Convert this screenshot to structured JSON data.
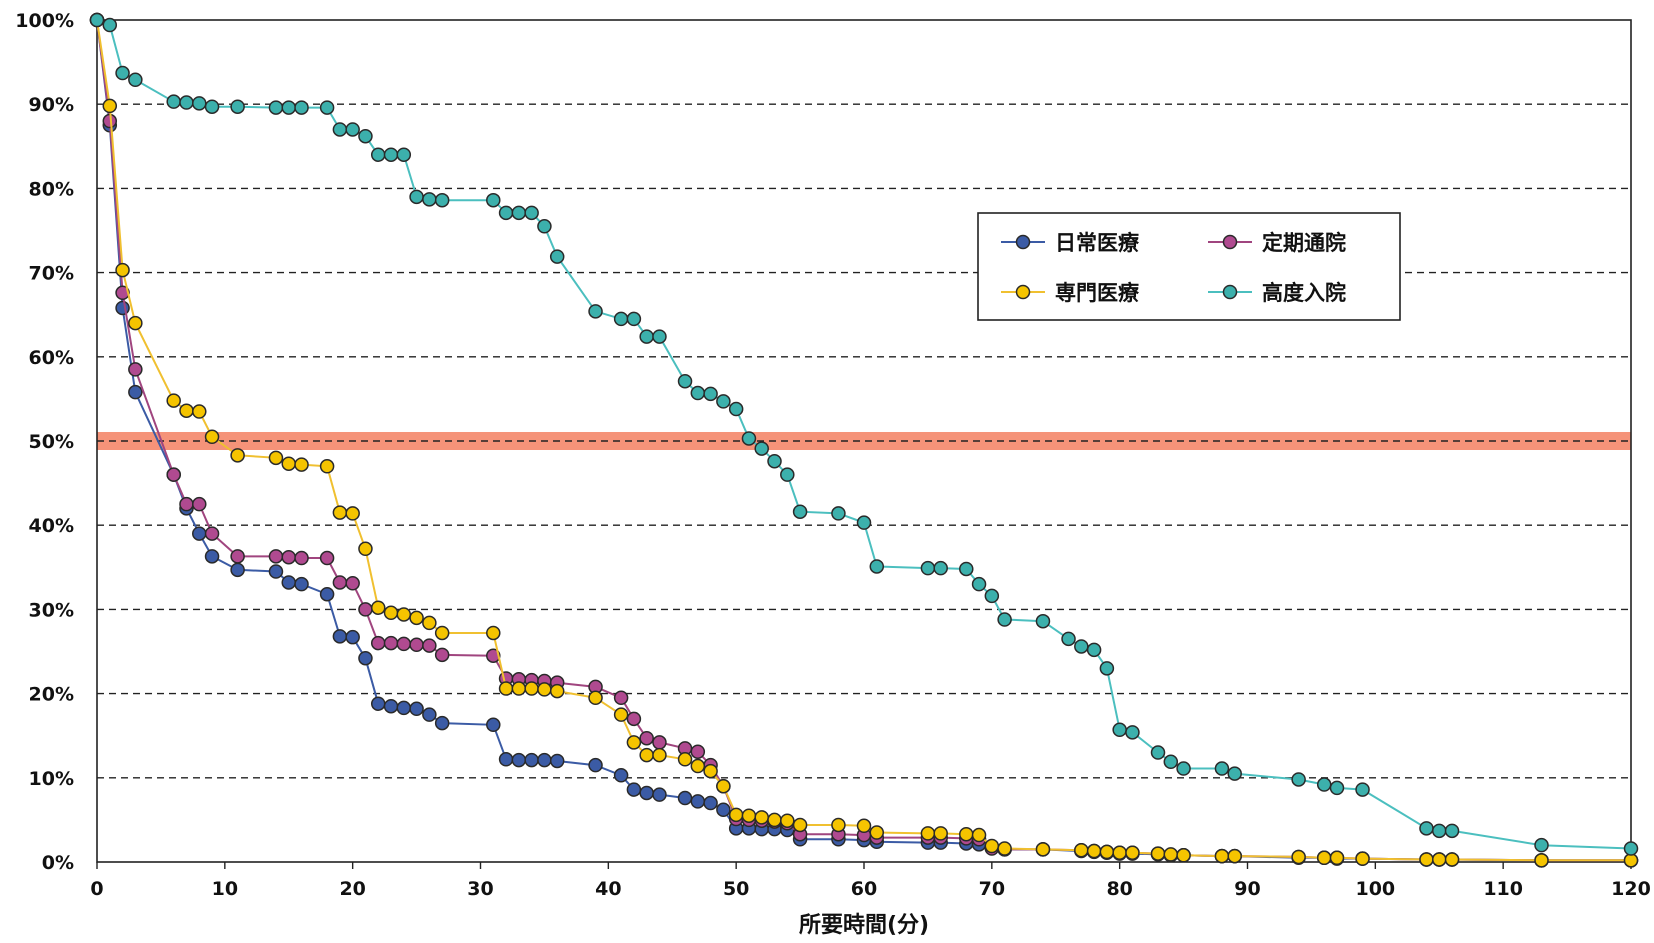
{
  "chart_data": {
    "type": "line",
    "title": "",
    "xlabel": "所要時間(分)",
    "ylabel": "",
    "xlim": [
      0,
      120
    ],
    "ylim": [
      0,
      100
    ],
    "x_ticks": [
      0,
      10,
      20,
      30,
      40,
      50,
      60,
      70,
      80,
      90,
      100,
      110,
      120
    ],
    "y_ticks": [
      0,
      10,
      20,
      30,
      40,
      50,
      60,
      70,
      80,
      90,
      100
    ],
    "y_tick_labels": [
      "0%",
      "10%",
      "20%",
      "30%",
      "40%",
      "50%",
      "60%",
      "70%",
      "80%",
      "90%",
      "100%"
    ],
    "grid": "horizontal dashed",
    "legend_position": "upper-right",
    "highlight_band": {
      "y": 50,
      "color": "#f4876a"
    },
    "series": [
      {
        "name": "日常医療",
        "color": "#3b5ba5",
        "marker_fill": "#3b5ba5",
        "points": [
          [
            0,
            100
          ],
          [
            1,
            87.5
          ],
          [
            2,
            65.8
          ],
          [
            3,
            55.8
          ],
          [
            6,
            46
          ],
          [
            7,
            42
          ],
          [
            8,
            39
          ],
          [
            9,
            36.3
          ],
          [
            11,
            34.7
          ],
          [
            14,
            34.5
          ],
          [
            15,
            33.2
          ],
          [
            16,
            33
          ],
          [
            18,
            31.8
          ],
          [
            19,
            26.8
          ],
          [
            20,
            26.7
          ],
          [
            21,
            24.2
          ],
          [
            22,
            18.8
          ],
          [
            23,
            18.5
          ],
          [
            24,
            18.3
          ],
          [
            25,
            18.2
          ],
          [
            26,
            17.5
          ],
          [
            27,
            16.5
          ],
          [
            31,
            16.3
          ],
          [
            32,
            12.2
          ],
          [
            33,
            12.1
          ],
          [
            34,
            12.1
          ],
          [
            35,
            12.1
          ],
          [
            36,
            12
          ],
          [
            39,
            11.5
          ],
          [
            41,
            10.3
          ],
          [
            42,
            8.6
          ],
          [
            43,
            8.2
          ],
          [
            44,
            8
          ],
          [
            46,
            7.6
          ],
          [
            47,
            7.2
          ],
          [
            48,
            7
          ],
          [
            49,
            6.2
          ],
          [
            50,
            4
          ],
          [
            51,
            4
          ],
          [
            52,
            3.9
          ],
          [
            53,
            3.9
          ],
          [
            54,
            3.8
          ],
          [
            55,
            2.7
          ],
          [
            58,
            2.7
          ],
          [
            60,
            2.6
          ],
          [
            61,
            2.4
          ],
          [
            65,
            2.3
          ],
          [
            66,
            2.3
          ],
          [
            68,
            2.2
          ],
          [
            69,
            2.1
          ],
          [
            70,
            1.8
          ],
          [
            71,
            1.5
          ],
          [
            74,
            1.5
          ],
          [
            77,
            1.3
          ],
          [
            78,
            1.2
          ],
          [
            79,
            1.1
          ],
          [
            80,
            1
          ],
          [
            81,
            1
          ],
          [
            83,
            0.9
          ],
          [
            84,
            0.8
          ],
          [
            85,
            0.8
          ],
          [
            88,
            0.7
          ],
          [
            89,
            0.7
          ],
          [
            94,
            0.5
          ],
          [
            96,
            0.5
          ],
          [
            97,
            0.4
          ],
          [
            99,
            0.4
          ],
          [
            104,
            0.3
          ],
          [
            105,
            0.3
          ],
          [
            106,
            0.3
          ],
          [
            113,
            0.2
          ],
          [
            120,
            0.2
          ]
        ]
      },
      {
        "name": "定期通院",
        "color": "#a0457f",
        "marker_fill": "#b04a90",
        "points": [
          [
            0,
            100
          ],
          [
            1,
            88
          ],
          [
            2,
            67.6
          ],
          [
            3,
            58.5
          ],
          [
            6,
            46
          ],
          [
            7,
            42.5
          ],
          [
            8,
            42.5
          ],
          [
            9,
            39
          ],
          [
            11,
            36.3
          ],
          [
            14,
            36.3
          ],
          [
            15,
            36.2
          ],
          [
            16,
            36.1
          ],
          [
            18,
            36.1
          ],
          [
            19,
            33.2
          ],
          [
            20,
            33.1
          ],
          [
            21,
            30
          ],
          [
            22,
            26
          ],
          [
            23,
            26
          ],
          [
            24,
            25.9
          ],
          [
            25,
            25.8
          ],
          [
            26,
            25.7
          ],
          [
            27,
            24.6
          ],
          [
            31,
            24.5
          ],
          [
            32,
            21.8
          ],
          [
            33,
            21.7
          ],
          [
            34,
            21.6
          ],
          [
            35,
            21.5
          ],
          [
            36,
            21.3
          ],
          [
            39,
            20.8
          ],
          [
            41,
            19.5
          ],
          [
            42,
            17
          ],
          [
            43,
            14.7
          ],
          [
            44,
            14.2
          ],
          [
            46,
            13.5
          ],
          [
            47,
            13.1
          ],
          [
            48,
            11.5
          ],
          [
            49,
            9
          ],
          [
            50,
            5.1
          ],
          [
            51,
            5
          ],
          [
            52,
            4.9
          ],
          [
            53,
            4.8
          ],
          [
            54,
            4.6
          ],
          [
            55,
            3.3
          ],
          [
            58,
            3.3
          ],
          [
            60,
            3.2
          ],
          [
            61,
            2.9
          ],
          [
            65,
            2.9
          ],
          [
            66,
            2.9
          ],
          [
            68,
            2.8
          ],
          [
            69,
            2.7
          ],
          [
            70,
            1.6
          ],
          [
            71,
            1.5
          ],
          [
            74,
            1.5
          ],
          [
            77,
            1.4
          ],
          [
            78,
            1.3
          ],
          [
            79,
            1.2
          ],
          [
            80,
            1.1
          ],
          [
            81,
            1.1
          ],
          [
            83,
            1
          ],
          [
            84,
            0.8
          ],
          [
            85,
            0.8
          ],
          [
            88,
            0.7
          ],
          [
            89,
            0.7
          ],
          [
            94,
            0.6
          ],
          [
            96,
            0.5
          ],
          [
            97,
            0.5
          ],
          [
            99,
            0.4
          ],
          [
            104,
            0.3
          ],
          [
            105,
            0.3
          ],
          [
            106,
            0.3
          ],
          [
            113,
            0.2
          ],
          [
            120,
            0.2
          ]
        ]
      },
      {
        "name": "専門医療",
        "color": "#f0c030",
        "marker_fill": "#f5c400",
        "points": [
          [
            0,
            100
          ],
          [
            1,
            89.8
          ],
          [
            2,
            70.3
          ],
          [
            3,
            64
          ],
          [
            6,
            54.8
          ],
          [
            7,
            53.6
          ],
          [
            8,
            53.5
          ],
          [
            9,
            50.5
          ],
          [
            11,
            48.3
          ],
          [
            14,
            48
          ],
          [
            15,
            47.3
          ],
          [
            16,
            47.2
          ],
          [
            18,
            47
          ],
          [
            19,
            41.5
          ],
          [
            20,
            41.4
          ],
          [
            21,
            37.2
          ],
          [
            22,
            30.2
          ],
          [
            23,
            29.6
          ],
          [
            24,
            29.4
          ],
          [
            25,
            29
          ],
          [
            26,
            28.4
          ],
          [
            27,
            27.2
          ],
          [
            31,
            27.2
          ],
          [
            32,
            20.6
          ],
          [
            33,
            20.6
          ],
          [
            34,
            20.6
          ],
          [
            35,
            20.5
          ],
          [
            36,
            20.3
          ],
          [
            39,
            19.5
          ],
          [
            41,
            17.5
          ],
          [
            42,
            14.2
          ],
          [
            43,
            12.7
          ],
          [
            44,
            12.7
          ],
          [
            46,
            12.2
          ],
          [
            47,
            11.4
          ],
          [
            48,
            10.8
          ],
          [
            49,
            9
          ],
          [
            50,
            5.6
          ],
          [
            51,
            5.5
          ],
          [
            52,
            5.3
          ],
          [
            53,
            5
          ],
          [
            54,
            4.9
          ],
          [
            55,
            4.4
          ],
          [
            58,
            4.4
          ],
          [
            60,
            4.3
          ],
          [
            61,
            3.5
          ],
          [
            65,
            3.4
          ],
          [
            66,
            3.4
          ],
          [
            68,
            3.3
          ],
          [
            69,
            3.2
          ],
          [
            70,
            1.9
          ],
          [
            71,
            1.6
          ],
          [
            74,
            1.5
          ],
          [
            77,
            1.4
          ],
          [
            78,
            1.3
          ],
          [
            79,
            1.2
          ],
          [
            80,
            1.1
          ],
          [
            81,
            1.1
          ],
          [
            83,
            1
          ],
          [
            84,
            0.9
          ],
          [
            85,
            0.8
          ],
          [
            88,
            0.7
          ],
          [
            89,
            0.7
          ],
          [
            94,
            0.6
          ],
          [
            96,
            0.5
          ],
          [
            97,
            0.5
          ],
          [
            99,
            0.4
          ],
          [
            104,
            0.3
          ],
          [
            105,
            0.3
          ],
          [
            106,
            0.3
          ],
          [
            113,
            0.2
          ],
          [
            120,
            0.2
          ]
        ]
      },
      {
        "name": "高度入院",
        "color": "#4bbfbf",
        "marker_fill": "#3cb0ac",
        "points": [
          [
            0,
            100
          ],
          [
            1,
            99.4
          ],
          [
            2,
            93.7
          ],
          [
            3,
            92.9
          ],
          [
            6,
            90.3
          ],
          [
            7,
            90.2
          ],
          [
            8,
            90.1
          ],
          [
            9,
            89.7
          ],
          [
            11,
            89.7
          ],
          [
            14,
            89.6
          ],
          [
            15,
            89.6
          ],
          [
            16,
            89.6
          ],
          [
            18,
            89.6
          ],
          [
            19,
            87
          ],
          [
            20,
            87
          ],
          [
            21,
            86.2
          ],
          [
            22,
            84
          ],
          [
            23,
            84
          ],
          [
            24,
            84
          ],
          [
            25,
            79
          ],
          [
            26,
            78.7
          ],
          [
            27,
            78.6
          ],
          [
            31,
            78.6
          ],
          [
            32,
            77.1
          ],
          [
            33,
            77.1
          ],
          [
            34,
            77.1
          ],
          [
            35,
            75.5
          ],
          [
            36,
            71.9
          ],
          [
            39,
            65.4
          ],
          [
            41,
            64.5
          ],
          [
            42,
            64.5
          ],
          [
            43,
            62.4
          ],
          [
            44,
            62.4
          ],
          [
            46,
            57.1
          ],
          [
            47,
            55.7
          ],
          [
            48,
            55.6
          ],
          [
            49,
            54.7
          ],
          [
            50,
            53.8
          ],
          [
            51,
            50.3
          ],
          [
            52,
            49.1
          ],
          [
            53,
            47.6
          ],
          [
            54,
            46
          ],
          [
            55,
            41.6
          ],
          [
            58,
            41.4
          ],
          [
            60,
            40.3
          ],
          [
            61,
            35.1
          ],
          [
            65,
            34.9
          ],
          [
            66,
            34.9
          ],
          [
            68,
            34.8
          ],
          [
            69,
            33
          ],
          [
            70,
            31.6
          ],
          [
            71,
            28.8
          ],
          [
            74,
            28.6
          ],
          [
            76,
            26.5
          ],
          [
            77,
            25.6
          ],
          [
            78,
            25.2
          ],
          [
            79,
            23
          ],
          [
            80,
            15.7
          ],
          [
            81,
            15.4
          ],
          [
            83,
            13
          ],
          [
            84,
            11.9
          ],
          [
            85,
            11.1
          ],
          [
            88,
            11.1
          ],
          [
            89,
            10.5
          ],
          [
            94,
            9.8
          ],
          [
            96,
            9.2
          ],
          [
            97,
            8.8
          ],
          [
            99,
            8.6
          ],
          [
            104,
            4
          ],
          [
            105,
            3.7
          ],
          [
            106,
            3.7
          ],
          [
            113,
            2
          ],
          [
            120,
            1.6
          ]
        ]
      }
    ]
  }
}
